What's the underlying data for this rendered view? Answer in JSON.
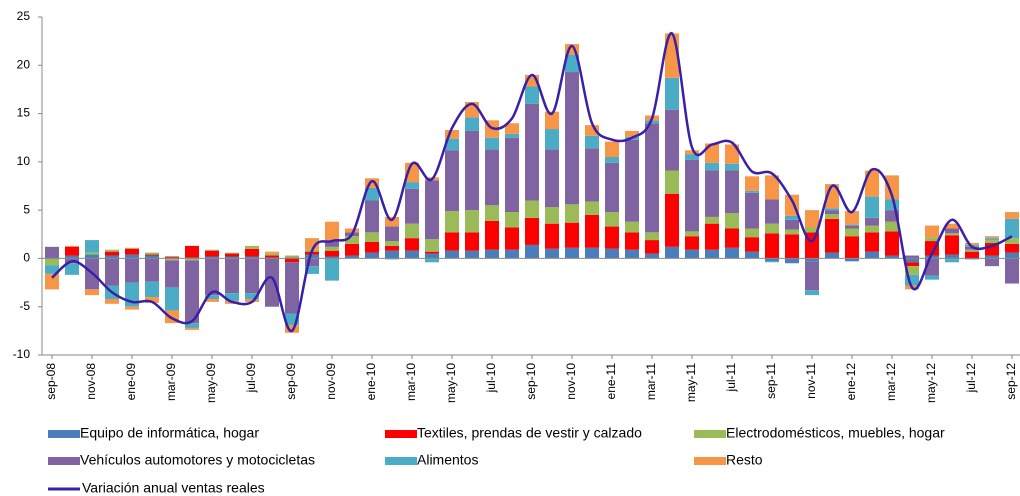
{
  "chart_data": {
    "type": "stacked_bar_line",
    "categories": [
      "sep-08",
      null,
      "nov-08",
      null,
      "ene-09",
      null,
      "mar-09",
      null,
      "may-09",
      null,
      "jul-09",
      null,
      "sep-09",
      null,
      "nov-09",
      null,
      "ene-10",
      null,
      "mar-10",
      null,
      "may-10",
      null,
      "jul-10",
      null,
      "sep-10",
      null,
      "nov-10",
      null,
      "ene-11",
      null,
      "mar-11",
      null,
      "may-11",
      null,
      "jul-11",
      null,
      "sep-11",
      null,
      "nov-11",
      null,
      "ene-12",
      null,
      "mar-12",
      null,
      "may-12",
      null,
      "jul-12",
      null,
      "sep-12"
    ],
    "ylim": [
      -10,
      25
    ],
    "yticks": [
      -10,
      -5,
      0,
      5,
      10,
      15,
      20,
      25
    ],
    "grid": false,
    "series": [
      {
        "name": "Equipo de informática, hogar",
        "color": "#4a7ebb",
        "values": [
          0.1,
          0.3,
          0.4,
          0.3,
          0.4,
          0.3,
          0.1,
          0.1,
          0.2,
          0.2,
          0.2,
          0.1,
          0.1,
          0.4,
          0.2,
          0.3,
          0.6,
          0.8,
          0.8,
          0.5,
          0.8,
          0.8,
          0.9,
          0.9,
          1.4,
          1,
          1.1,
          1.1,
          1,
          0.9,
          0.5,
          1.2,
          0.9,
          0.9,
          1.1,
          0.7,
          -0.3,
          -0.5,
          -0.3,
          0.6,
          -0.3,
          0.7,
          0.3,
          -0.4,
          0.3,
          0.4,
          -0.1,
          0.3,
          0.6
        ]
      },
      {
        "name": "Textiles, prendas de vestir y calzado",
        "color": "#ff0000",
        "values": [
          0,
          0.9,
          0,
          0.4,
          0.6,
          0.1,
          0.1,
          1.2,
          0.6,
          0.3,
          0.8,
          0.2,
          -0.4,
          0.3,
          0.6,
          1.2,
          1.1,
          0.5,
          1.3,
          0.2,
          1.9,
          1.9,
          3,
          2.3,
          2.8,
          2.6,
          2.6,
          3.4,
          2.3,
          1.8,
          1.4,
          5.5,
          1.4,
          2.7,
          2,
          1.5,
          2.6,
          2.5,
          2.7,
          3.5,
          2.3,
          2,
          2.5,
          -0.4,
          1.5,
          2,
          0.7,
          1.3,
          0.9
        ]
      },
      {
        "name": "Electrodomésticos, muebles, hogar",
        "color": "#9bbb59",
        "values": [
          -0.7,
          0,
          0.2,
          0.2,
          0.1,
          0.2,
          -0.2,
          -0.2,
          0.1,
          0.1,
          0.3,
          0.2,
          0.2,
          0.2,
          0.4,
          0.8,
          1,
          0.5,
          1.5,
          1.3,
          2.2,
          2.3,
          1.6,
          1.6,
          1.8,
          1.7,
          1.9,
          1.4,
          1.5,
          1.1,
          0.8,
          2.4,
          0.5,
          0.7,
          1.6,
          0.9,
          1,
          0.5,
          0.5,
          0.5,
          0.8,
          0.7,
          1,
          -0.9,
          0.4,
          0.2,
          0.2,
          0.3,
          0.6
        ]
      },
      {
        "name": "Vehículos automotores y motocicletas",
        "color": "#8064a2",
        "values": [
          1.1,
          -0.5,
          -3.2,
          -2.8,
          -2.5,
          -2.4,
          -2.8,
          -6.5,
          -3.8,
          -3.6,
          -3.6,
          -5,
          -5.3,
          -0.8,
          0.6,
          0.4,
          3.3,
          1.5,
          3.6,
          6.1,
          6.3,
          8.2,
          5.8,
          7.7,
          10,
          6,
          13.7,
          5.5,
          5.1,
          8.5,
          11.3,
          6.3,
          7.4,
          4.8,
          4.4,
          3.7,
          2.5,
          1,
          -3,
          0.4,
          0.3,
          0.8,
          1.2,
          0.3,
          -1.8,
          0.5,
          0.3,
          -0.8,
          -2.6
        ]
      },
      {
        "name": "Alimentos",
        "color": "#4bacc6",
        "values": [
          -0.9,
          -1.2,
          1.3,
          -1.4,
          -2.5,
          -1.6,
          -2.4,
          -0.5,
          -0.4,
          -0.8,
          -0.6,
          0,
          -1.2,
          -0.8,
          -2.3,
          0,
          1.3,
          -0.1,
          0.7,
          -0.4,
          1.2,
          1.4,
          1.2,
          0.4,
          1.8,
          2.1,
          1.8,
          1.3,
          0.6,
          0.3,
          0.3,
          3.3,
          0.6,
          0.8,
          0.7,
          0.2,
          -0.1,
          0.4,
          -0.5,
          0.2,
          0.1,
          2.2,
          1.1,
          -1.1,
          -0.4,
          -0.4,
          0.2,
          0.2,
          2
        ]
      },
      {
        "name": "Resto",
        "color": "#f79646",
        "values": [
          -1.6,
          0.1,
          -0.6,
          -0.5,
          -0.3,
          -0.6,
          -1.3,
          -0.2,
          -0.3,
          -0.3,
          -0.3,
          0.2,
          -0.8,
          1.2,
          2,
          0.4,
          1,
          1,
          2,
          0.3,
          0.9,
          1.6,
          1.8,
          1.1,
          1.2,
          1.8,
          1.1,
          1.1,
          1.6,
          0.6,
          0.5,
          4.6,
          0.4,
          2,
          2,
          1.5,
          2.5,
          2.2,
          1.8,
          2.5,
          1.4,
          2.7,
          2.5,
          -0.4,
          1.2,
          0.5,
          0.2,
          0.2,
          0.7
        ]
      }
    ],
    "line": {
      "name": "Variación anual ventas reales",
      "color": "#3a1fa8",
      "values": [
        -2,
        -0.3,
        -1.5,
        -3.5,
        -4.5,
        -4.5,
        -6.2,
        -6.5,
        -3.5,
        -4.5,
        -4.5,
        -2,
        -7.5,
        0.8,
        1.8,
        2.5,
        8,
        4,
        9.8,
        8.2,
        13.5,
        16,
        13.5,
        14.5,
        19,
        15,
        22,
        14,
        12.3,
        12.5,
        14.5,
        23.3,
        11.5,
        11.8,
        12,
        9,
        8.8,
        6,
        1.8,
        7.5,
        4.8,
        9.2,
        6.5,
        -3,
        0.5,
        4,
        1.2,
        1.3,
        2.3
      ]
    }
  }
}
